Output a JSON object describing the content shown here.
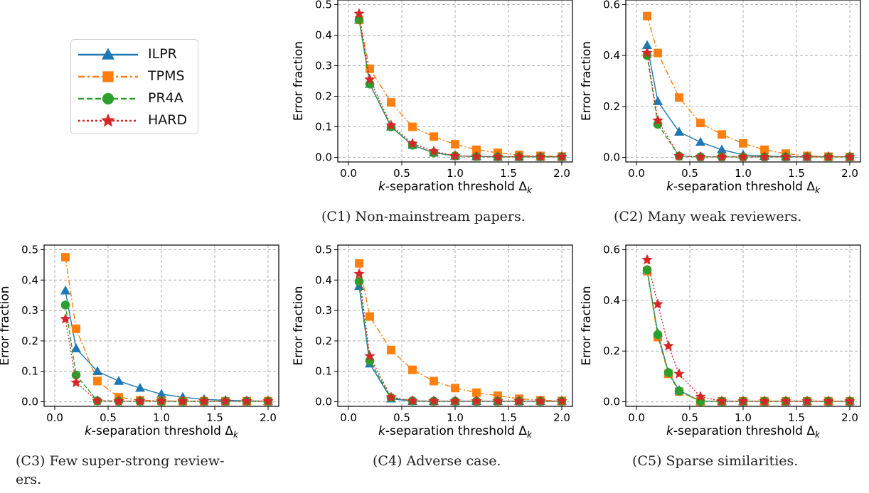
{
  "colors": {
    "ILPR": "#1f77b4",
    "TPMS": "#ff7f0e",
    "PR4A": "#2ca02c",
    "HARD": "#d62728"
  },
  "legend": [
    {
      "name": "ILPR",
      "marker": "triangle",
      "dash": "solid"
    },
    {
      "name": "TPMS",
      "marker": "square",
      "dash": "dashdot"
    },
    {
      "name": "PR4A",
      "marker": "circle",
      "dash": "dashed"
    },
    {
      "name": "HARD",
      "marker": "star",
      "dash": "dotted"
    }
  ],
  "captions": {
    "c1": "(C1) Non-mainstream papers.",
    "c2": "(C2) Many weak reviewers.",
    "c3a": "(C3) Few super-strong review-",
    "c3b": "ers.",
    "c4": "(C4) Adverse case.",
    "c5": "(C5) Sparse similarities."
  },
  "chart_data": [
    {
      "id": "C1",
      "type": "line",
      "xlabel": "k-separation threshold Δk",
      "ylabel": "Error fraction",
      "xlim": [
        -0.1,
        2.1
      ],
      "ylim": [
        -0.015,
        0.515
      ],
      "xticks": [
        0.0,
        0.5,
        1.0,
        1.5,
        2.0
      ],
      "xtick_labels": [
        "0.0",
        "0.5",
        "1.0",
        "1.5",
        "2.0"
      ],
      "yticks": [
        0.0,
        0.1,
        0.2,
        0.3,
        0.4,
        0.5
      ],
      "ytick_labels": [
        "0.0",
        "0.1",
        "0.2",
        "0.3",
        "0.4",
        "0.5"
      ],
      "grid": true,
      "x": [
        0.1,
        0.2,
        0.4,
        0.6,
        0.8,
        1.0,
        1.2,
        1.4,
        1.6,
        1.8,
        2.0
      ],
      "series": [
        {
          "name": "ILPR",
          "values": [
            0.45,
            0.24,
            0.1,
            0.04,
            0.015,
            0.005,
            0.003,
            0.002,
            0.002,
            0.002,
            0.002
          ]
        },
        {
          "name": "TPMS",
          "values": [
            0.45,
            0.29,
            0.18,
            0.1,
            0.068,
            0.043,
            0.025,
            0.015,
            0.008,
            0.005,
            0.003
          ]
        },
        {
          "name": "PR4A",
          "values": [
            0.45,
            0.24,
            0.1,
            0.04,
            0.015,
            0.005,
            0.003,
            0.002,
            0.002,
            0.002,
            0.002
          ]
        },
        {
          "name": "HARD",
          "values": [
            0.47,
            0.255,
            0.105,
            0.045,
            0.02,
            0.005,
            0.003,
            0.002,
            0.002,
            0.002,
            0.002
          ]
        }
      ]
    },
    {
      "id": "C2",
      "type": "line",
      "xlabel": "k-separation threshold Δk",
      "ylabel": "Error fraction",
      "xlim": [
        -0.1,
        2.1
      ],
      "ylim": [
        -0.018,
        0.618
      ],
      "xticks": [
        0.0,
        0.5,
        1.0,
        1.5,
        2.0
      ],
      "xtick_labels": [
        "0.0",
        "0.5",
        "1.0",
        "1.5",
        "2.0"
      ],
      "yticks": [
        0.0,
        0.2,
        0.4,
        0.6
      ],
      "ytick_labels": [
        "0.0",
        "0.2",
        "0.4",
        "0.6"
      ],
      "grid": true,
      "x": [
        0.1,
        0.2,
        0.4,
        0.6,
        0.8,
        1.0,
        1.2,
        1.4,
        1.6,
        1.8,
        2.0
      ],
      "series": [
        {
          "name": "ILPR",
          "values": [
            0.44,
            0.22,
            0.1,
            0.06,
            0.03,
            0.01,
            0.005,
            0.003,
            0.002,
            0.002,
            0.002
          ]
        },
        {
          "name": "TPMS",
          "values": [
            0.555,
            0.41,
            0.235,
            0.135,
            0.09,
            0.055,
            0.03,
            0.015,
            0.006,
            0.003,
            0.002
          ]
        },
        {
          "name": "PR4A",
          "values": [
            0.4,
            0.13,
            0.005,
            0.002,
            0.002,
            0.002,
            0.002,
            0.002,
            0.002,
            0.002,
            0.002
          ]
        },
        {
          "name": "HARD",
          "values": [
            0.41,
            0.145,
            0.005,
            0.002,
            0.002,
            0.002,
            0.002,
            0.002,
            0.002,
            0.002,
            0.002
          ]
        }
      ]
    },
    {
      "id": "C3",
      "type": "line",
      "xlabel": "k-separation threshold Δk",
      "ylabel": "Error fraction",
      "xlim": [
        -0.1,
        2.1
      ],
      "ylim": [
        -0.015,
        0.515
      ],
      "xticks": [
        0.0,
        0.5,
        1.0,
        1.5,
        2.0
      ],
      "xtick_labels": [
        "0.0",
        "0.5",
        "1.0",
        "1.5",
        "2.0"
      ],
      "yticks": [
        0.0,
        0.1,
        0.2,
        0.3,
        0.4,
        0.5
      ],
      "ytick_labels": [
        "0.0",
        "0.1",
        "0.2",
        "0.3",
        "0.4",
        "0.5"
      ],
      "grid": true,
      "x": [
        0.1,
        0.2,
        0.4,
        0.6,
        0.8,
        1.0,
        1.2,
        1.4,
        1.6,
        1.8,
        2.0
      ],
      "series": [
        {
          "name": "ILPR",
          "values": [
            0.365,
            0.175,
            0.1,
            0.068,
            0.045,
            0.025,
            0.015,
            0.008,
            0.005,
            0.003,
            0.002
          ]
        },
        {
          "name": "TPMS",
          "values": [
            0.475,
            0.24,
            0.068,
            0.015,
            0.005,
            0.003,
            0.002,
            0.002,
            0.002,
            0.002,
            0.002
          ]
        },
        {
          "name": "PR4A",
          "values": [
            0.318,
            0.088,
            0.003,
            0.002,
            0.002,
            0.002,
            0.002,
            0.002,
            0.002,
            0.002,
            0.002
          ]
        },
        {
          "name": "HARD",
          "values": [
            0.272,
            0.063,
            0.003,
            0.002,
            0.002,
            0.002,
            0.002,
            0.002,
            0.002,
            0.002,
            0.002
          ]
        }
      ]
    },
    {
      "id": "C4",
      "type": "line",
      "xlabel": "k-separation threshold Δk",
      "ylabel": "Error fraction",
      "xlim": [
        -0.1,
        2.1
      ],
      "ylim": [
        -0.015,
        0.515
      ],
      "xticks": [
        0.0,
        0.5,
        1.0,
        1.5,
        2.0
      ],
      "xtick_labels": [
        "0.0",
        "0.5",
        "1.0",
        "1.5",
        "2.0"
      ],
      "yticks": [
        0.0,
        0.1,
        0.2,
        0.3,
        0.4,
        0.5
      ],
      "ytick_labels": [
        "0.0",
        "0.1",
        "0.2",
        "0.3",
        "0.4",
        "0.5"
      ],
      "grid": true,
      "x": [
        0.1,
        0.2,
        0.4,
        0.6,
        0.8,
        1.0,
        1.2,
        1.4,
        1.6,
        1.8,
        2.0
      ],
      "series": [
        {
          "name": "ILPR",
          "values": [
            0.38,
            0.125,
            0.01,
            0.002,
            0.002,
            0.002,
            0.002,
            0.002,
            0.002,
            0.002,
            0.002
          ]
        },
        {
          "name": "TPMS",
          "values": [
            0.455,
            0.28,
            0.17,
            0.105,
            0.068,
            0.045,
            0.03,
            0.02,
            0.01,
            0.005,
            0.003
          ]
        },
        {
          "name": "PR4A",
          "values": [
            0.395,
            0.135,
            0.013,
            0.003,
            0.002,
            0.002,
            0.002,
            0.002,
            0.002,
            0.002,
            0.002
          ]
        },
        {
          "name": "HARD",
          "values": [
            0.42,
            0.15,
            0.015,
            0.003,
            0.002,
            0.002,
            0.002,
            0.002,
            0.002,
            0.002,
            0.002
          ]
        }
      ]
    },
    {
      "id": "C5",
      "type": "line",
      "xlabel": "k-separation threshold Δk",
      "ylabel": "Error fraction",
      "xlim": [
        -0.1,
        2.1
      ],
      "ylim": [
        -0.018,
        0.618
      ],
      "xticks": [
        0.0,
        0.5,
        1.0,
        1.5,
        2.0
      ],
      "xtick_labels": [
        "0.0",
        "0.5",
        "1.0",
        "1.5",
        "2.0"
      ],
      "yticks": [
        0.0,
        0.2,
        0.4,
        0.6
      ],
      "ytick_labels": [
        "0.0",
        "0.2",
        "0.4",
        "0.6"
      ],
      "grid": true,
      "x": [
        0.1,
        0.2,
        0.3,
        0.4,
        0.6,
        0.8,
        1.0,
        1.2,
        1.4,
        1.6,
        1.8,
        2.0
      ],
      "series": [
        {
          "name": "ILPR",
          "values": [
            0.52,
            0.27,
            0.115,
            0.045,
            0.002,
            0.002,
            0.002,
            0.002,
            0.002,
            0.002,
            0.002,
            0.002
          ]
        },
        {
          "name": "TPMS",
          "values": [
            0.515,
            0.255,
            0.11,
            0.04,
            0.002,
            0.002,
            0.002,
            0.002,
            0.002,
            0.002,
            0.002,
            0.002
          ]
        },
        {
          "name": "PR4A",
          "values": [
            0.52,
            0.265,
            0.115,
            0.042,
            0.002,
            0.002,
            0.002,
            0.002,
            0.002,
            0.002,
            0.002,
            0.002
          ]
        },
        {
          "name": "HARD",
          "values": [
            0.56,
            0.385,
            0.22,
            0.11,
            0.02,
            0.002,
            0.002,
            0.002,
            0.002,
            0.002,
            0.002,
            0.002
          ]
        }
      ]
    }
  ]
}
